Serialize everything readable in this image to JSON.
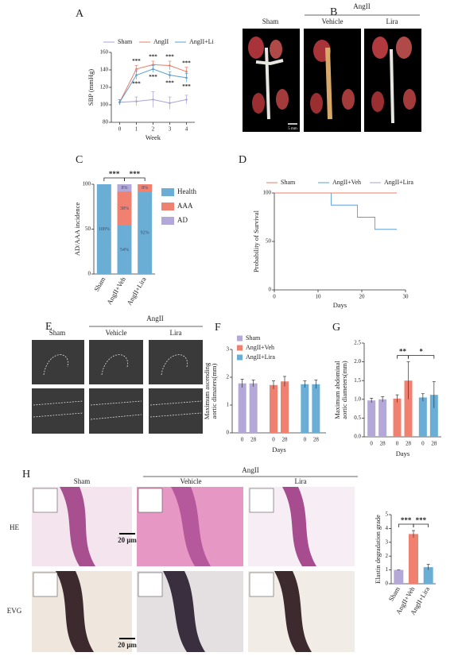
{
  "chart_data": [
    {
      "type": "line",
      "panel": "A",
      "ylabel": "SBP (mmHg)",
      "xlabel": "Week",
      "x": [
        0,
        1,
        2,
        3,
        4
      ],
      "xlim": [
        -0.5,
        4.5
      ],
      "xticks": [
        0,
        1,
        2,
        3,
        4
      ],
      "ylim": [
        80,
        160
      ],
      "yticks": [
        80,
        100,
        120,
        140,
        160
      ],
      "legend": "top",
      "series": [
        {
          "name": "Sham",
          "color": "#a9a3d6",
          "values": [
            103,
            104,
            106,
            102,
            106
          ],
          "errors": [
            3,
            5,
            9,
            7,
            5
          ]
        },
        {
          "name": "AngII",
          "color": "#ec7b63",
          "values": [
            103,
            141,
            146,
            145,
            138
          ],
          "errors": [
            3,
            4,
            4,
            5,
            5
          ],
          "sig_labels": [
            null,
            "***",
            "***",
            "***",
            "***"
          ]
        },
        {
          "name": "AngII+Li",
          "color": "#5a9fd4",
          "values": [
            103,
            134,
            141,
            134,
            131
          ],
          "errors": [
            3,
            5,
            4,
            4,
            5
          ],
          "sig_labels": [
            null,
            "***",
            "***",
            "***",
            "***"
          ]
        }
      ]
    },
    {
      "type": "stacked_bar",
      "panel": "C",
      "ylabel": "AD/AAA incidence",
      "categories": [
        "Sham",
        "AngII+Veh",
        "AngII+Lira"
      ],
      "ylim": [
        0,
        100
      ],
      "yticks": [
        0,
        50,
        100
      ],
      "legend": "right",
      "series": [
        {
          "name": "Health",
          "color": "#6aaed6",
          "values": [
            100,
            54,
            92
          ],
          "value_labels": [
            "100%",
            "54%",
            "92%"
          ]
        },
        {
          "name": "AAA",
          "color": "#f08070",
          "values": [
            0,
            38,
            8
          ],
          "value_labels": [
            null,
            "38%",
            "8%"
          ]
        },
        {
          "name": "AD",
          "color": "#b4a8d8",
          "values": [
            0,
            8,
            0
          ],
          "value_labels": [
            null,
            "8%",
            null
          ]
        }
      ],
      "brackets": [
        {
          "from": 0,
          "to": 1,
          "label": "***"
        },
        {
          "from": 1,
          "to": 2,
          "label": "***"
        }
      ]
    },
    {
      "type": "step",
      "panel": "D",
      "ylabel": "Probability of Survival",
      "xlabel": "Days",
      "xlim": [
        0,
        30
      ],
      "xticks": [
        0,
        10,
        20,
        30
      ],
      "ylim": [
        0,
        100
      ],
      "yticks": [
        0,
        50,
        100
      ],
      "legend": "top",
      "series": [
        {
          "name": "Sham",
          "color": "#ec7b63",
          "x": [
            0,
            28
          ],
          "values": [
            100,
            100
          ]
        },
        {
          "name": "AngII+Veh",
          "color": "#5a9fd4",
          "x": [
            0,
            13,
            19,
            23,
            28
          ],
          "values": [
            100,
            87.5,
            75,
            62.5,
            62.5
          ]
        },
        {
          "name": "AngII+Lira",
          "color": "#a9a3d6",
          "x": [
            0,
            28
          ],
          "values": [
            100,
            100
          ]
        }
      ]
    },
    {
      "type": "grouped_bar",
      "panel": "F",
      "ylabel": [
        "Maximum ascending",
        "aortic dimaters(mm)"
      ],
      "xlabel": "Days",
      "categories": [
        "0",
        "28"
      ],
      "ylim": [
        0,
        3
      ],
      "yticks": [
        0,
        1,
        2,
        3
      ],
      "legend": "upper left",
      "series": [
        {
          "name": "Sham",
          "color": "#b4a8d8",
          "values": [
            1.78,
            1.78
          ],
          "errors": [
            0.15,
            0.12
          ]
        },
        {
          "name": "AngII+Veh",
          "color": "#f08070",
          "values": [
            1.72,
            1.85
          ],
          "errors": [
            0.15,
            0.18
          ]
        },
        {
          "name": "AngII+Lira",
          "color": "#6aaed6",
          "values": [
            1.75,
            1.75
          ],
          "errors": [
            0.12,
            0.15
          ]
        }
      ]
    },
    {
      "type": "grouped_bar",
      "panel": "G",
      "ylabel": [
        "Maximum abdominal",
        "aortic diameters(mm)"
      ],
      "xlabel": "Days",
      "categories": [
        "0",
        "28"
      ],
      "ylim": [
        0,
        2.5
      ],
      "yticks": [
        {
          "value": 0,
          "label": "0.0"
        },
        {
          "value": 0.5,
          "label": "0.5"
        },
        {
          "value": 1,
          "label": "1.0"
        },
        {
          "value": 1.5,
          "label": "1.5"
        },
        {
          "value": 2,
          "label": "2.0"
        },
        {
          "value": 2.5,
          "label": "2.5"
        }
      ],
      "series": [
        {
          "name": "Sham",
          "color": "#b4a8d8",
          "values": [
            0.97,
            1.0
          ],
          "errors": [
            0.06,
            0.07
          ]
        },
        {
          "name": "AngII+Veh",
          "color": "#f08070",
          "values": [
            1.02,
            1.5
          ],
          "errors": [
            0.1,
            0.5
          ]
        },
        {
          "name": "AngII+Lira",
          "color": "#6aaed6",
          "values": [
            1.05,
            1.12
          ],
          "errors": [
            0.1,
            0.35
          ]
        }
      ],
      "brackets": [
        {
          "from": [
            1,
            0
          ],
          "to": [
            1,
            1
          ],
          "label": "**"
        },
        {
          "from": [
            1,
            1
          ],
          "to": [
            2,
            1
          ],
          "label": "*"
        }
      ]
    },
    {
      "type": "bar",
      "ylabel": "Elastin degradation grade",
      "categories": [
        "Sham",
        "AngII+Veh",
        "AngII+Lira"
      ],
      "values": [
        1,
        3.6,
        1.2
      ],
      "errors": [
        0,
        0.25,
        0.2
      ],
      "colors": [
        "#b4a8d8",
        "#f08070",
        "#6aaed6"
      ],
      "ylim": [
        0,
        5
      ],
      "yticks": [
        0,
        1,
        2,
        3,
        4,
        5
      ],
      "brackets": [
        {
          "from": 0,
          "to": 1,
          "label": "***"
        },
        {
          "from": 1,
          "to": 2,
          "label": "***"
        }
      ]
    }
  ],
  "images": {
    "B": {
      "panel": "B",
      "group": "AngII",
      "labels": [
        "Sham",
        "Vehicle",
        "Lira"
      ],
      "scale": "5 mm"
    },
    "E": {
      "panel": "E",
      "group": "AngII",
      "labels": [
        "Sham",
        "Vehicle",
        "Lira"
      ]
    },
    "H": {
      "panel": "H",
      "group": "AngII",
      "labels": [
        "Sham",
        "Vehicle",
        "Lira"
      ],
      "rows": [
        "HE",
        "EVG"
      ],
      "scale": "20 μm"
    }
  }
}
